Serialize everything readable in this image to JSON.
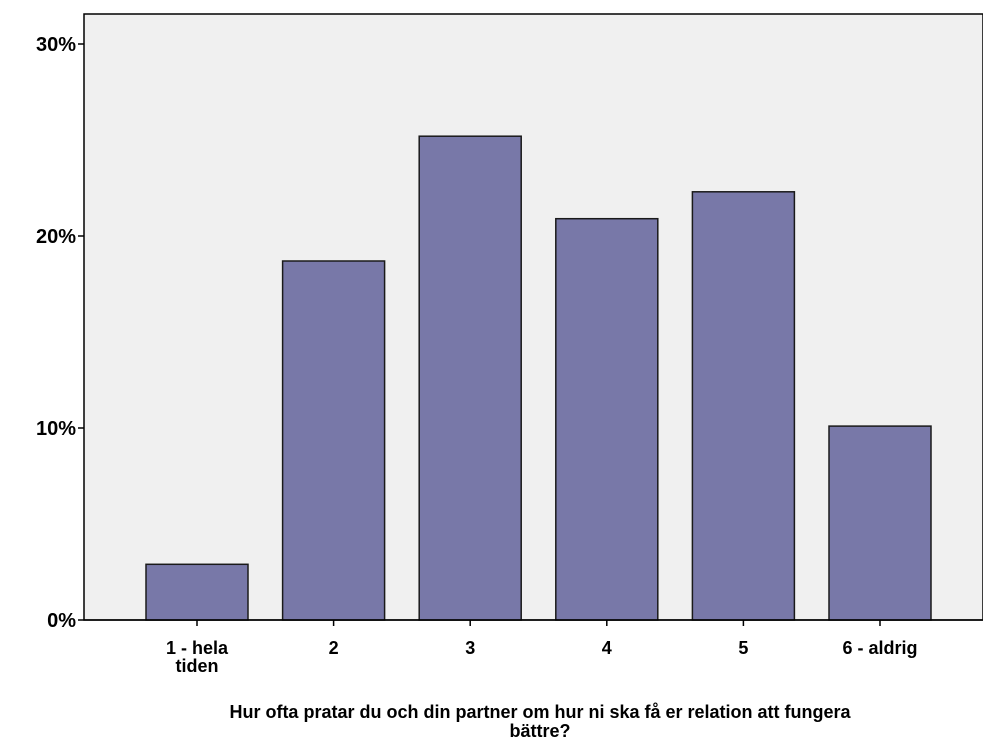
{
  "chart_data": {
    "type": "bar",
    "categories": [
      "1 - hela tiden",
      "2",
      "3",
      "4",
      "5",
      "6 - aldrig"
    ],
    "values": [
      2.9,
      18.7,
      25.2,
      20.9,
      22.3,
      10.1
    ],
    "xlabel": "Hur ofta pratar du och din partner om hur ni ska få er relation att fungera bättre?",
    "ylabel": "",
    "ylim": [
      0,
      30
    ],
    "yticks": [
      "0%",
      "10%",
      "20%",
      "30%"
    ],
    "grid": false,
    "colors": {
      "bar_fill": "#7878a8",
      "bar_stroke": "#1a1a1a",
      "plot_bg": "#f0f0f0"
    }
  }
}
